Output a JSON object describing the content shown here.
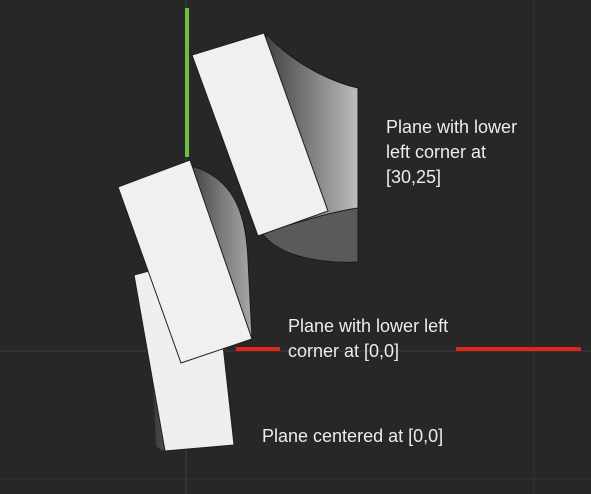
{
  "viewport": {
    "background": "#272727",
    "grid_color": "#3a3a3a",
    "axis_x_color": "#e0231b",
    "axis_y_color": "#6fbf3f"
  },
  "annotations": {
    "plane_corner_30_25": "Plane with lower\nleft corner at\n[30,25]",
    "plane_corner_0_0": "Plane with lower left\ncorner at [0,0]",
    "plane_centered": "Plane centered at  [0,0]"
  }
}
